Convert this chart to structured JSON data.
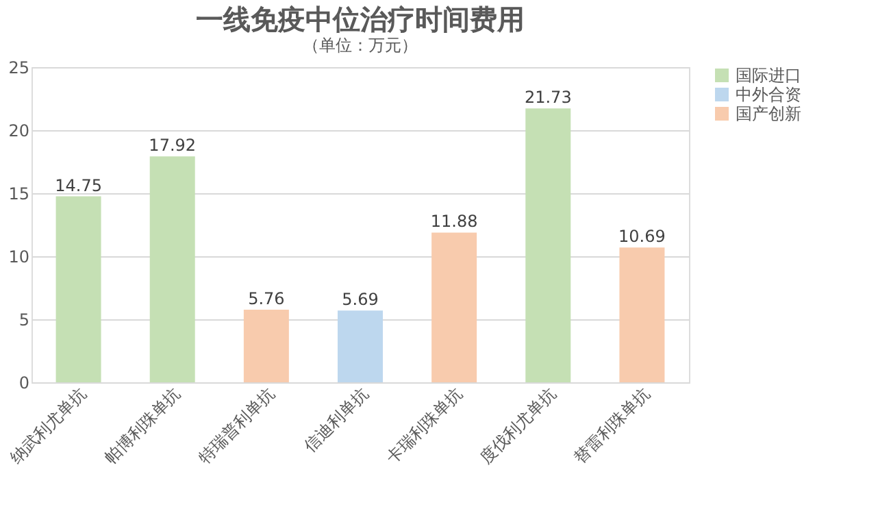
{
  "chart_data": {
    "type": "bar",
    "title": "一线免疫中位治疗时间费用",
    "subtitle": "（单位：万元）",
    "categories": [
      "纳武利尤单抗",
      "帕博利珠单抗",
      "特瑞普利单抗",
      "信迪利单抗",
      "卡瑞利珠单抗",
      "度伐利尤单抗",
      "替雷利珠单抗"
    ],
    "series": [
      {
        "name": "国际进口",
        "color": "#c5e0b4",
        "values": [
          14.75,
          17.92,
          null,
          null,
          null,
          21.73,
          null
        ]
      },
      {
        "name": "中外合资",
        "color": "#bdd7ee",
        "values": [
          null,
          null,
          null,
          5.69,
          null,
          null,
          null
        ]
      },
      {
        "name": "国产创新",
        "color": "#f8cbad",
        "values": [
          null,
          null,
          5.76,
          null,
          11.88,
          null,
          10.69
        ]
      }
    ],
    "ylim": [
      0,
      25
    ],
    "yticks": [
      0,
      5,
      10,
      15,
      20,
      25
    ],
    "grid": "y",
    "legend": "right",
    "data_labels": true
  }
}
